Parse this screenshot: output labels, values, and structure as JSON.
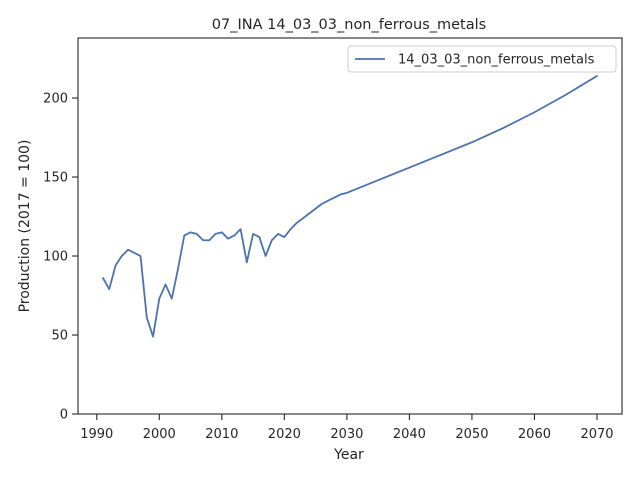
{
  "chart_data": {
    "type": "line",
    "title": "07_INA 14_03_03_non_ferrous_metals",
    "xlabel": "Year",
    "ylabel": "Production (2017 = 100)",
    "xlim": [
      1987,
      2074
    ],
    "ylim": [
      0,
      238
    ],
    "xticks": [
      1990,
      2000,
      2010,
      2020,
      2030,
      2040,
      2050,
      2060,
      2070
    ],
    "yticks": [
      0,
      50,
      100,
      150,
      200
    ],
    "grid": false,
    "legend_position": "top-right",
    "series": [
      {
        "name": "14_03_03_non_ferrous_metals",
        "color": "#4c72b0",
        "x": [
          1991,
          1992,
          1993,
          1994,
          1995,
          1996,
          1997,
          1998,
          1999,
          2000,
          2001,
          2002,
          2003,
          2004,
          2005,
          2006,
          2007,
          2008,
          2009,
          2010,
          2011,
          2012,
          2013,
          2014,
          2015,
          2016,
          2017,
          2018,
          2019,
          2020,
          2021,
          2022,
          2023,
          2024,
          2025,
          2026,
          2027,
          2028,
          2029,
          2030,
          2035,
          2040,
          2045,
          2050,
          2055,
          2060,
          2065,
          2070
        ],
        "y": [
          86,
          79,
          94,
          100,
          104,
          102,
          100,
          61,
          49,
          73,
          82,
          73,
          92,
          113,
          115,
          114,
          110,
          110,
          114,
          115,
          111,
          113,
          117,
          96,
          114,
          112,
          100,
          110,
          114,
          112,
          117,
          121,
          124,
          127,
          130,
          133,
          135,
          137,
          139,
          140,
          148,
          156,
          164,
          172,
          181,
          191,
          202,
          214
        ]
      }
    ]
  }
}
